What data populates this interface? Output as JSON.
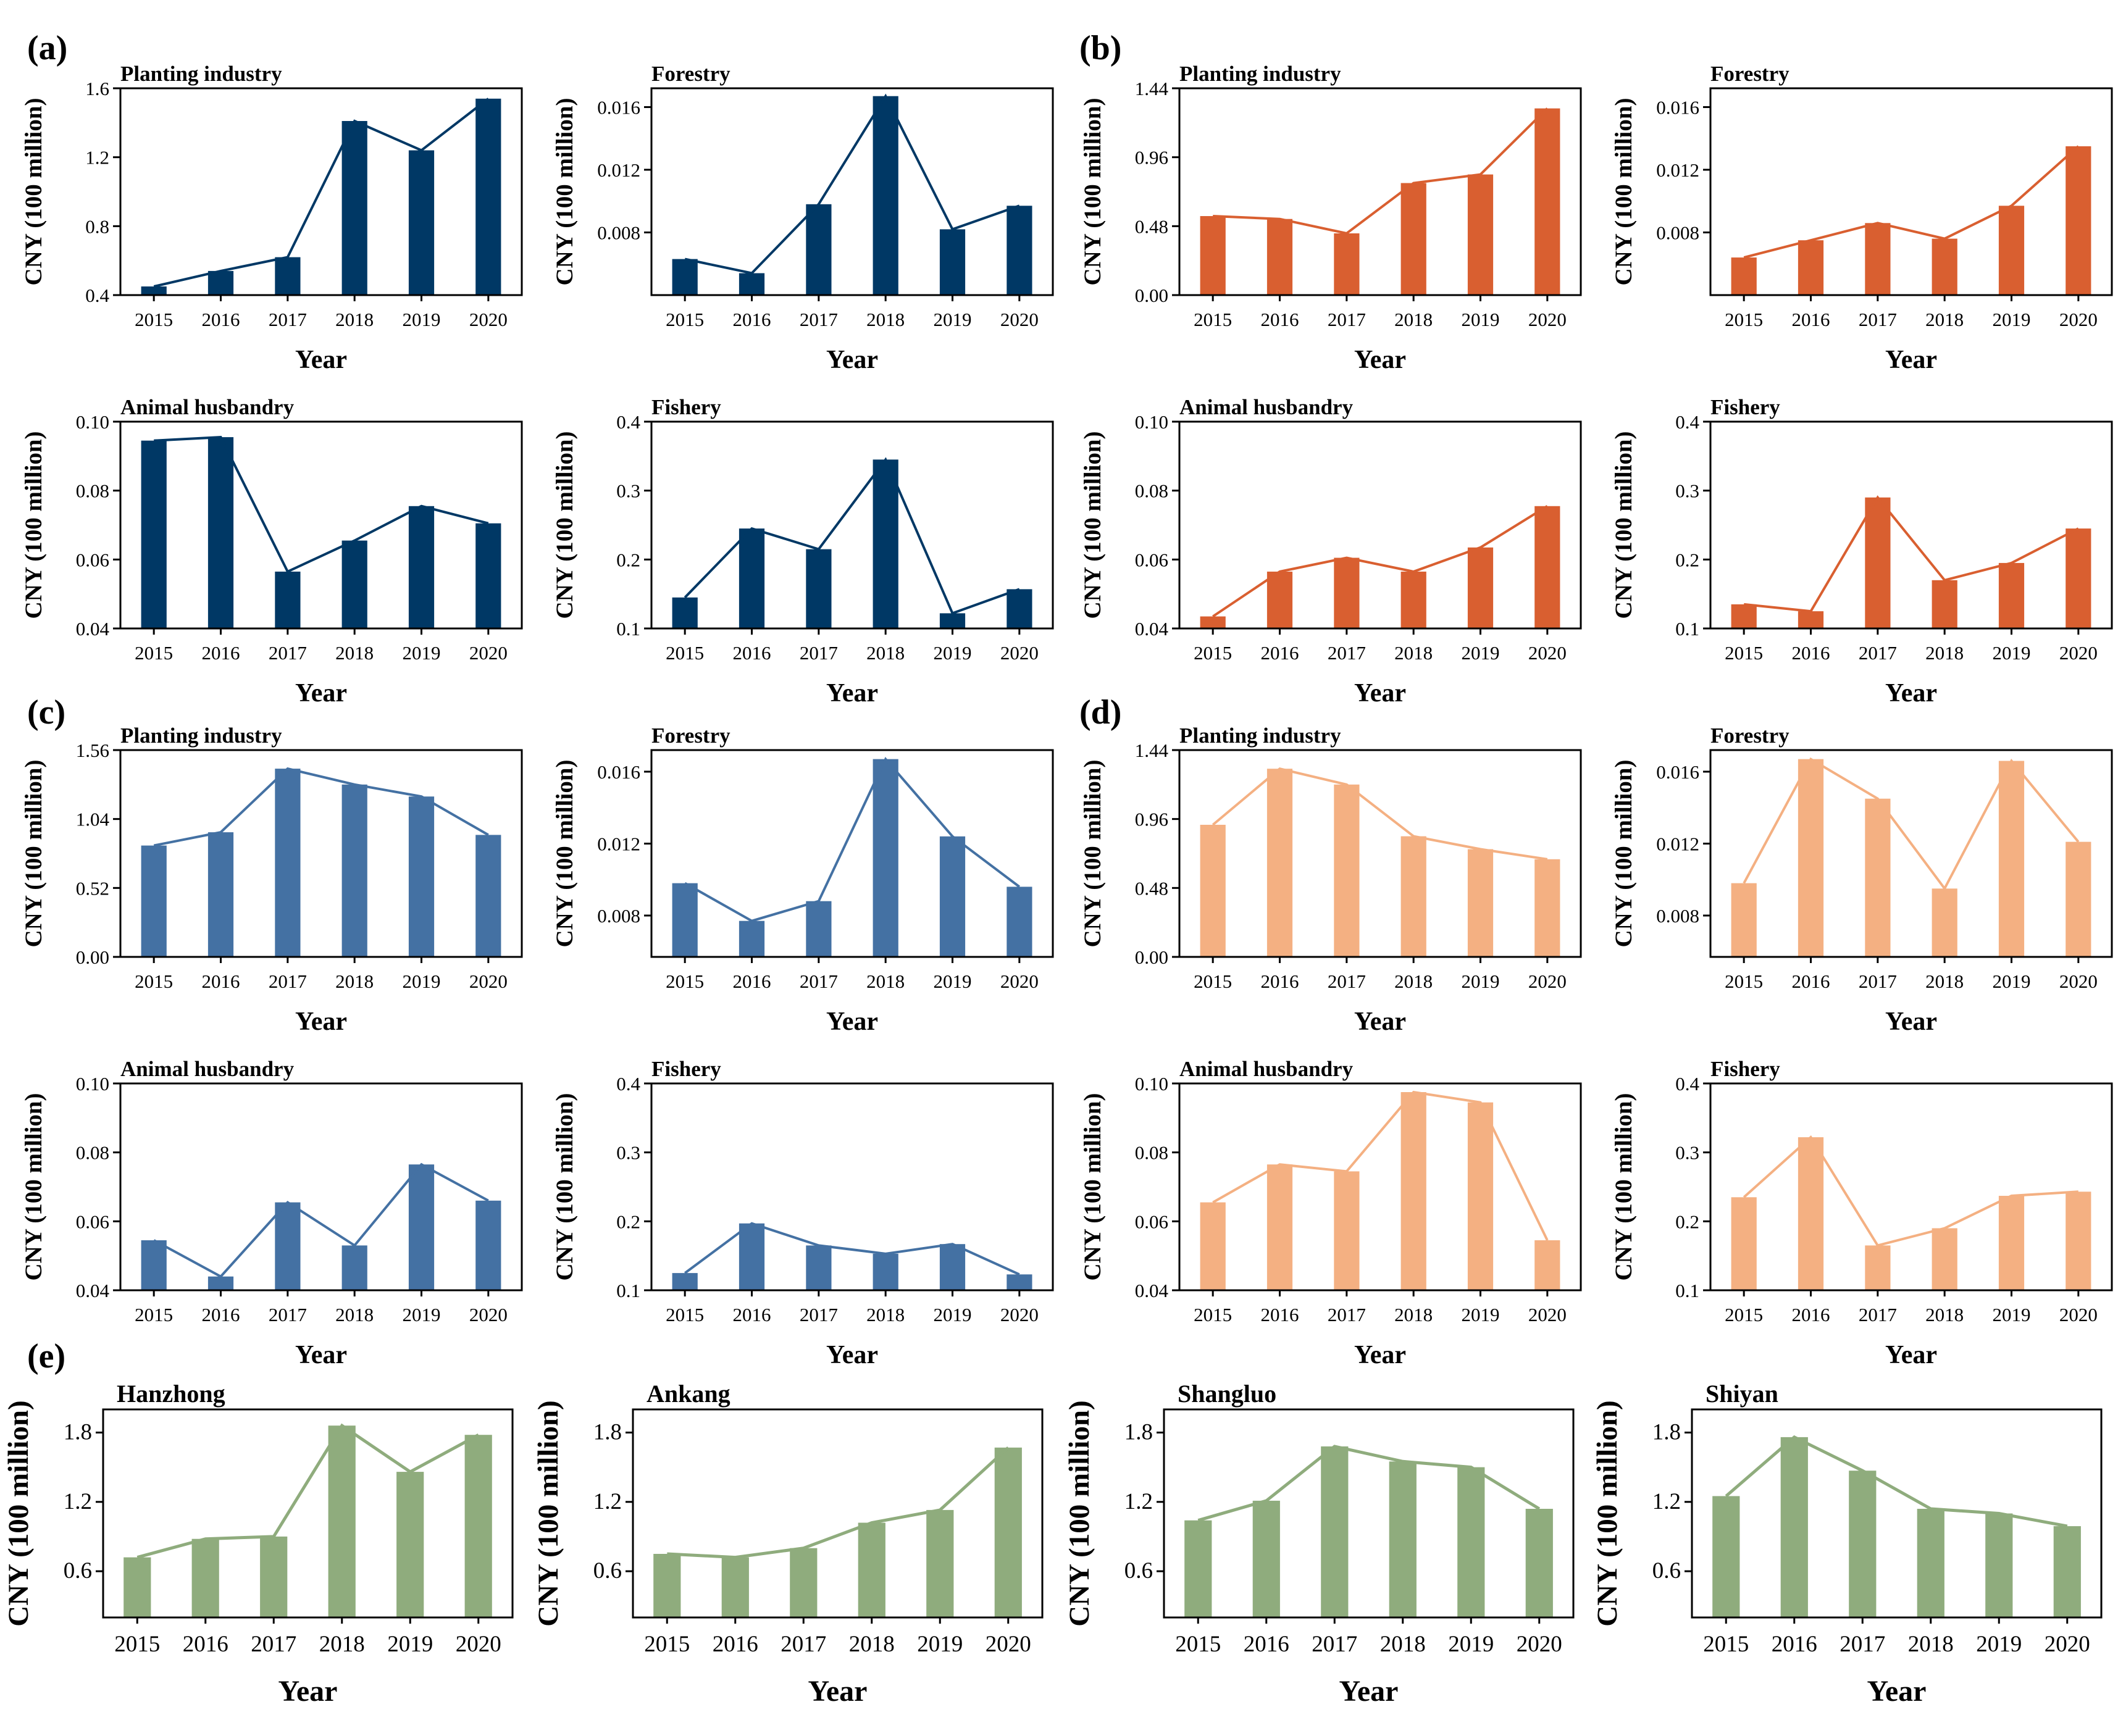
{
  "panel_labels": [
    "(a)",
    "(b)",
    "(c)",
    "(d)",
    "(e)"
  ],
  "colors": {
    "a": "#003865",
    "b": "#d95f30",
    "c": "#4471a3",
    "d": "#f4b082",
    "e": "#8fac7d"
  },
  "chart_data": [
    {
      "id": "a1",
      "group": "(a)",
      "type": "bar",
      "title": "Planting industry",
      "categories": [
        "2015",
        "2016",
        "2017",
        "2018",
        "2019",
        "2020"
      ],
      "values": [
        0.45,
        0.54,
        0.62,
        1.41,
        1.24,
        1.54
      ],
      "ylim": [
        0.4,
        1.6
      ],
      "yticks": [
        "0.4",
        "0.8",
        "1.2",
        "1.6"
      ],
      "ylabel": "CNY (100 million)",
      "xlabel": "Year",
      "color_key": "a"
    },
    {
      "id": "a2",
      "group": "(a)",
      "type": "bar",
      "title": "Forestry",
      "categories": [
        "2015",
        "2016",
        "2017",
        "2018",
        "2019",
        "2020"
      ],
      "values": [
        0.0063,
        0.0054,
        0.0098,
        0.0167,
        0.0082,
        0.0097
      ],
      "ylim": [
        0.004,
        0.0172
      ],
      "yticks": [
        "0.008",
        "0.012",
        "0.016"
      ],
      "ylabel": "CNY (100 million)",
      "xlabel": "Year",
      "color_key": "a"
    },
    {
      "id": "a3",
      "group": "(a)",
      "type": "bar",
      "title": "Animal husbandry",
      "categories": [
        "2015",
        "2016",
        "2017",
        "2018",
        "2019",
        "2020"
      ],
      "values": [
        0.0945,
        0.0955,
        0.0565,
        0.0655,
        0.0755,
        0.0705
      ],
      "ylim": [
        0.04,
        0.1
      ],
      "yticks": [
        "0.04",
        "0.06",
        "0.08",
        "0.10"
      ],
      "ylabel": "CNY (100 million)",
      "xlabel": "Year",
      "color_key": "a"
    },
    {
      "id": "a4",
      "group": "(a)",
      "type": "bar",
      "title": "Fishery",
      "categories": [
        "2015",
        "2016",
        "2017",
        "2018",
        "2019",
        "2020"
      ],
      "values": [
        0.145,
        0.245,
        0.215,
        0.345,
        0.122,
        0.157
      ],
      "ylim": [
        0.1,
        0.4
      ],
      "yticks": [
        "0.1",
        "0.2",
        "0.3",
        "0.4"
      ],
      "ylabel": "CNY (100 million)",
      "xlabel": "Year",
      "color_key": "a"
    },
    {
      "id": "b1",
      "group": "(b)",
      "type": "bar",
      "title": "Planting industry",
      "categories": [
        "2015",
        "2016",
        "2017",
        "2018",
        "2019",
        "2020"
      ],
      "values": [
        0.55,
        0.53,
        0.43,
        0.78,
        0.84,
        1.3
      ],
      "ylim": [
        0,
        1.44
      ],
      "yticks": [
        "0.00",
        "0.48",
        "0.96",
        "1.44"
      ],
      "ylabel": "CNY (100 million)",
      "xlabel": "Year",
      "color_key": "b"
    },
    {
      "id": "b2",
      "group": "(b)",
      "type": "bar",
      "title": "Forestry",
      "categories": [
        "2015",
        "2016",
        "2017",
        "2018",
        "2019",
        "2020"
      ],
      "values": [
        0.0064,
        0.0075,
        0.0086,
        0.0076,
        0.0097,
        0.0135
      ],
      "ylim": [
        0.004,
        0.0172
      ],
      "yticks": [
        "0.008",
        "0.012",
        "0.016"
      ],
      "ylabel": "CNY (100 million)",
      "xlabel": "Year",
      "color_key": "b"
    },
    {
      "id": "b3",
      "group": "(b)",
      "type": "bar",
      "title": "Animal husbandry",
      "categories": [
        "2015",
        "2016",
        "2017",
        "2018",
        "2019",
        "2020"
      ],
      "values": [
        0.0435,
        0.0565,
        0.0605,
        0.0565,
        0.0635,
        0.0755
      ],
      "ylim": [
        0.04,
        0.1
      ],
      "yticks": [
        "0.04",
        "0.06",
        "0.08",
        "0.10"
      ],
      "ylabel": "CNY (100 million)",
      "xlabel": "Year",
      "color_key": "b"
    },
    {
      "id": "b4",
      "group": "(b)",
      "type": "bar",
      "title": "Fishery",
      "categories": [
        "2015",
        "2016",
        "2017",
        "2018",
        "2019",
        "2020"
      ],
      "values": [
        0.135,
        0.125,
        0.29,
        0.17,
        0.195,
        0.245
      ],
      "ylim": [
        0.1,
        0.4
      ],
      "yticks": [
        "0.1",
        "0.2",
        "0.3",
        "0.4"
      ],
      "ylabel": "CNY (100 million)",
      "xlabel": "Year",
      "color_key": "b"
    },
    {
      "id": "c1",
      "group": "(c)",
      "type": "bar",
      "title": "Planting industry",
      "categories": [
        "2015",
        "2016",
        "2017",
        "2018",
        "2019",
        "2020"
      ],
      "values": [
        0.84,
        0.94,
        1.42,
        1.3,
        1.21,
        0.92
      ],
      "ylim": [
        0,
        1.56
      ],
      "yticks": [
        "0.00",
        "0.52",
        "1.04",
        "1.56"
      ],
      "ylabel": "CNY (100 million)",
      "xlabel": "Year",
      "color_key": "c"
    },
    {
      "id": "c2",
      "group": "(c)",
      "type": "bar",
      "title": "Forestry",
      "categories": [
        "2015",
        "2016",
        "2017",
        "2018",
        "2019",
        "2020"
      ],
      "values": [
        0.0098,
        0.0077,
        0.0088,
        0.0167,
        0.0124,
        0.0096
      ],
      "ylim": [
        0.0057,
        0.0172
      ],
      "yticks": [
        "0.008",
        "0.012",
        "0.016"
      ],
      "ylabel": "CNY (100 million)",
      "xlabel": "Year",
      "color_key": "c"
    },
    {
      "id": "c3",
      "group": "(c)",
      "type": "bar",
      "title": "Animal husbandry",
      "categories": [
        "2015",
        "2016",
        "2017",
        "2018",
        "2019",
        "2020"
      ],
      "values": [
        0.0545,
        0.044,
        0.0655,
        0.053,
        0.0765,
        0.066
      ],
      "ylim": [
        0.04,
        0.1
      ],
      "yticks": [
        "0.04",
        "0.06",
        "0.08",
        "0.10"
      ],
      "ylabel": "CNY (100 million)",
      "xlabel": "Year",
      "color_key": "c"
    },
    {
      "id": "c4",
      "group": "(c)",
      "type": "bar",
      "title": "Fishery",
      "categories": [
        "2015",
        "2016",
        "2017",
        "2018",
        "2019",
        "2020"
      ],
      "values": [
        0.125,
        0.197,
        0.165,
        0.153,
        0.167,
        0.123
      ],
      "ylim": [
        0.1,
        0.4
      ],
      "yticks": [
        "0.1",
        "0.2",
        "0.3",
        "0.4"
      ],
      "ylabel": "CNY (100 million)",
      "xlabel": "Year",
      "color_key": "c"
    },
    {
      "id": "d1",
      "group": "(d)",
      "type": "bar",
      "title": "Planting industry",
      "categories": [
        "2015",
        "2016",
        "2017",
        "2018",
        "2019",
        "2020"
      ],
      "values": [
        0.92,
        1.31,
        1.2,
        0.84,
        0.75,
        0.68
      ],
      "ylim": [
        0,
        1.44
      ],
      "yticks": [
        "0.00",
        "0.48",
        "0.96",
        "1.44"
      ],
      "ylabel": "CNY (100 million)",
      "xlabel": "Year",
      "color_key": "d"
    },
    {
      "id": "d2",
      "group": "(d)",
      "type": "bar",
      "title": "Forestry",
      "categories": [
        "2015",
        "2016",
        "2017",
        "2018",
        "2019",
        "2020"
      ],
      "values": [
        0.0098,
        0.0167,
        0.0145,
        0.0095,
        0.0166,
        0.0121
      ],
      "ylim": [
        0.0057,
        0.0172
      ],
      "yticks": [
        "0.008",
        "0.012",
        "0.016"
      ],
      "ylabel": "CNY (100 million)",
      "xlabel": "Year",
      "color_key": "d"
    },
    {
      "id": "d3",
      "group": "(d)",
      "type": "bar",
      "title": "Animal husbandry",
      "categories": [
        "2015",
        "2016",
        "2017",
        "2018",
        "2019",
        "2020"
      ],
      "values": [
        0.0655,
        0.0765,
        0.0745,
        0.0975,
        0.0945,
        0.0545
      ],
      "ylim": [
        0.04,
        0.1
      ],
      "yticks": [
        "0.04",
        "0.06",
        "0.08",
        "0.10"
      ],
      "ylabel": "CNY (100 million)",
      "xlabel": "Year",
      "color_key": "d"
    },
    {
      "id": "d4",
      "group": "(d)",
      "type": "bar",
      "title": "Fishery",
      "categories": [
        "2015",
        "2016",
        "2017",
        "2018",
        "2019",
        "2020"
      ],
      "values": [
        0.235,
        0.322,
        0.165,
        0.19,
        0.237,
        0.243
      ],
      "ylim": [
        0.1,
        0.4
      ],
      "yticks": [
        "0.1",
        "0.2",
        "0.3",
        "0.4"
      ],
      "ylabel": "CNY (100 million)",
      "xlabel": "Year",
      "color_key": "d"
    },
    {
      "id": "e1",
      "group": "(e)",
      "type": "bar",
      "title": "Hanzhong",
      "categories": [
        "2015",
        "2016",
        "2017",
        "2018",
        "2019",
        "2020"
      ],
      "values": [
        0.72,
        0.88,
        0.9,
        1.86,
        1.46,
        1.78
      ],
      "ylim": [
        0.2,
        2.0
      ],
      "yticks": [
        "0.6",
        "1.2",
        "1.8"
      ],
      "ylabel": "CNY (100 million)",
      "xlabel": "Year",
      "color_key": "e"
    },
    {
      "id": "e2",
      "group": "(e)",
      "type": "bar",
      "title": "Ankang",
      "categories": [
        "2015",
        "2016",
        "2017",
        "2018",
        "2019",
        "2020"
      ],
      "values": [
        0.75,
        0.72,
        0.8,
        1.02,
        1.13,
        1.67
      ],
      "ylim": [
        0.2,
        2.0
      ],
      "yticks": [
        "0.6",
        "1.2",
        "1.8"
      ],
      "ylabel": "CNY (100 million)",
      "xlabel": "Year",
      "color_key": "e"
    },
    {
      "id": "e3",
      "group": "(e)",
      "type": "bar",
      "title": "Shangluo",
      "categories": [
        "2015",
        "2016",
        "2017",
        "2018",
        "2019",
        "2020"
      ],
      "values": [
        1.04,
        1.21,
        1.68,
        1.55,
        1.5,
        1.14
      ],
      "ylim": [
        0.2,
        2.0
      ],
      "yticks": [
        "0.6",
        "1.2",
        "1.8"
      ],
      "ylabel": "CNY (100 million)",
      "xlabel": "Year",
      "color_key": "e"
    },
    {
      "id": "e4",
      "group": "(e)",
      "type": "bar",
      "title": "Shiyan",
      "categories": [
        "2015",
        "2016",
        "2017",
        "2018",
        "2019",
        "2020"
      ],
      "values": [
        1.25,
        1.76,
        1.47,
        1.14,
        1.1,
        0.99
      ],
      "ylim": [
        0.2,
        2.0
      ],
      "yticks": [
        "0.6",
        "1.2",
        "1.8"
      ],
      "ylabel": "CNY (100 million)",
      "xlabel": "Year",
      "color_key": "e"
    }
  ]
}
